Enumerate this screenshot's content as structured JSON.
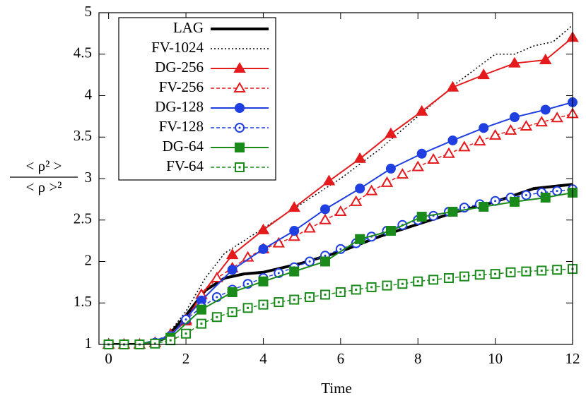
{
  "chart_data": {
    "type": "line",
    "xlabel": "Time",
    "ylabel": [
      "< ρ² >",
      "< ρ >²"
    ],
    "xlim": [
      -0.25,
      12
    ],
    "ylim": [
      1,
      5
    ],
    "xticks": [
      0,
      2,
      4,
      6,
      8,
      10,
      12
    ],
    "yticks": [
      1,
      1.5,
      2,
      2.5,
      3,
      3.5,
      4,
      4.5,
      5
    ],
    "legend": "top-left",
    "series": [
      {
        "name": "LAG",
        "color": "#000000",
        "width": 4,
        "dash": "solid",
        "marker": "none",
        "filled": false,
        "x": [
          0,
          1,
          1.5,
          2,
          2.5,
          3,
          3.5,
          4,
          5,
          6,
          7,
          8,
          9,
          10,
          11,
          12
        ],
        "values": [
          1,
          1,
          1.08,
          1.35,
          1.65,
          1.8,
          1.85,
          1.87,
          1.98,
          2.12,
          2.3,
          2.45,
          2.6,
          2.72,
          2.88,
          2.93
        ]
      },
      {
        "name": "FV-1024",
        "color": "#000000",
        "width": 1.5,
        "dash": "dotted",
        "marker": "none",
        "filled": false,
        "x": [
          0,
          1,
          1.5,
          2,
          2.5,
          3,
          4,
          5,
          6,
          7,
          8,
          9,
          10,
          10.5,
          11,
          11.5,
          12
        ],
        "values": [
          1,
          1.01,
          1.1,
          1.4,
          1.8,
          2.1,
          2.4,
          2.7,
          3.0,
          3.35,
          3.75,
          4.15,
          4.5,
          4.5,
          4.6,
          4.65,
          4.85
        ]
      },
      {
        "name": "DG-256",
        "color": "#e41a1c",
        "width": 2,
        "dash": "solid",
        "marker": "triangle",
        "filled": true,
        "x": [
          0,
          0.4,
          0.8,
          1.2,
          1.6,
          2.0,
          2.4,
          3.2,
          4.0,
          4.8,
          5.7,
          6.5,
          7.3,
          8.1,
          8.9,
          9.7,
          10.5,
          11.3,
          12
        ],
        "values": [
          1,
          1,
          1,
          1.02,
          1.12,
          1.28,
          1.6,
          2.08,
          2.38,
          2.65,
          2.97,
          3.24,
          3.54,
          3.81,
          4.1,
          4.25,
          4.39,
          4.43,
          4.7
        ]
      },
      {
        "name": "FV-256",
        "color": "#e41a1c",
        "width": 1.5,
        "dash": "dashed",
        "marker": "triangle",
        "filled": false,
        "x": [
          0,
          0.4,
          0.8,
          1.2,
          1.6,
          2.0,
          2.4,
          2.8,
          3.2,
          3.6,
          4.0,
          4.4,
          4.8,
          5.2,
          5.6,
          6.0,
          6.4,
          6.8,
          7.2,
          7.6,
          8.0,
          8.4,
          8.8,
          9.2,
          9.6,
          10.0,
          10.4,
          10.8,
          11.2,
          11.6,
          12
        ],
        "values": [
          1,
          1,
          1,
          1.02,
          1.12,
          1.3,
          1.6,
          1.8,
          1.92,
          2.05,
          2.15,
          2.22,
          2.3,
          2.4,
          2.5,
          2.6,
          2.72,
          2.85,
          2.95,
          3.05,
          3.14,
          3.23,
          3.3,
          3.38,
          3.45,
          3.52,
          3.58,
          3.63,
          3.68,
          3.73,
          3.78
        ]
      },
      {
        "name": "DG-128",
        "color": "#1f3fe0",
        "width": 2,
        "dash": "solid",
        "marker": "circle",
        "filled": true,
        "x": [
          0,
          0.8,
          1.6,
          2.4,
          3.2,
          4.0,
          4.8,
          5.6,
          6.5,
          7.3,
          8.1,
          8.9,
          9.7,
          10.5,
          11.3,
          12
        ],
        "values": [
          1,
          1,
          1.1,
          1.53,
          1.9,
          2.15,
          2.37,
          2.63,
          2.88,
          3.12,
          3.3,
          3.46,
          3.61,
          3.74,
          3.83,
          3.92
        ]
      },
      {
        "name": "FV-128",
        "color": "#1f3fe0",
        "width": 1.5,
        "dash": "dashed",
        "marker": "circle",
        "filled": false,
        "x": [
          0,
          0.4,
          0.8,
          1.2,
          1.6,
          2.0,
          2.4,
          2.8,
          3.2,
          3.6,
          4.0,
          4.4,
          4.8,
          5.2,
          5.6,
          6.0,
          6.4,
          6.8,
          7.2,
          7.6,
          8.0,
          8.4,
          8.8,
          9.2,
          9.6,
          10.0,
          10.4,
          10.8,
          11.2,
          11.6,
          12
        ],
        "values": [
          1,
          1,
          1,
          1.02,
          1.1,
          1.3,
          1.45,
          1.57,
          1.66,
          1.73,
          1.8,
          1.86,
          1.93,
          2.0,
          2.07,
          2.15,
          2.22,
          2.3,
          2.37,
          2.44,
          2.5,
          2.55,
          2.6,
          2.65,
          2.69,
          2.73,
          2.77,
          2.8,
          2.83,
          2.85,
          2.87
        ]
      },
      {
        "name": "DG-64",
        "color": "#1a8a1a",
        "width": 2,
        "dash": "solid",
        "marker": "square",
        "filled": true,
        "x": [
          0,
          0.8,
          1.6,
          2.4,
          3.2,
          4.0,
          4.8,
          5.6,
          6.5,
          7.3,
          8.1,
          8.9,
          9.7,
          10.5,
          11.3,
          12
        ],
        "values": [
          1,
          1,
          1.08,
          1.42,
          1.63,
          1.76,
          1.88,
          2.0,
          2.27,
          2.37,
          2.54,
          2.6,
          2.66,
          2.72,
          2.77,
          2.83
        ]
      },
      {
        "name": "FV-64",
        "color": "#1a8a1a",
        "width": 1.5,
        "dash": "dashed",
        "marker": "square",
        "filled": false,
        "x": [
          0,
          0.4,
          0.8,
          1.2,
          1.6,
          2.0,
          2.4,
          2.8,
          3.2,
          3.6,
          4.0,
          4.4,
          4.8,
          5.2,
          5.6,
          6.0,
          6.4,
          6.8,
          7.2,
          7.6,
          8.0,
          8.4,
          8.8,
          9.2,
          9.6,
          10.0,
          10.4,
          10.8,
          11.2,
          11.6,
          12
        ],
        "values": [
          1,
          1,
          1,
          1.01,
          1.05,
          1.13,
          1.25,
          1.33,
          1.39,
          1.44,
          1.48,
          1.51,
          1.54,
          1.57,
          1.6,
          1.63,
          1.66,
          1.69,
          1.71,
          1.73,
          1.76,
          1.78,
          1.8,
          1.82,
          1.84,
          1.85,
          1.87,
          1.88,
          1.89,
          1.9,
          1.91
        ]
      }
    ]
  }
}
